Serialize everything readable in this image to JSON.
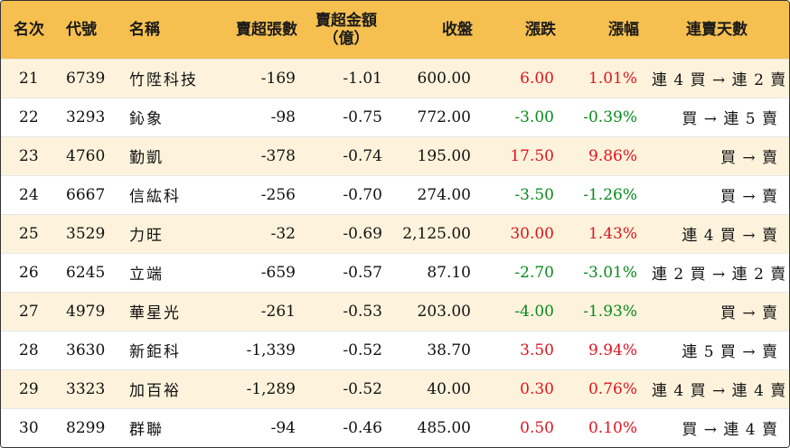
{
  "headers": {
    "rank": "名次",
    "code": "代號",
    "name": "名稱",
    "sell_over_shares": "賣超張數",
    "sell_over_amount_l1": "賣超金額",
    "sell_over_amount_l2": "（億）",
    "close": "收盤",
    "change": "漲跌",
    "change_pct": "漲幅",
    "consecutive": "連賣天數"
  },
  "colors": {
    "header_bg": "#f5c04f",
    "odd_row_bg": "#fdf3dc",
    "up": "#e0141e",
    "down": "#0a8a1e"
  },
  "rows": [
    {
      "rank": "21",
      "code": "6739",
      "name": "竹陞科技",
      "shares": "-169",
      "amount": "-1.01",
      "close": "600.00",
      "change": "6.00",
      "pct": "1.01%",
      "dir": "up",
      "days": "連 4 買 → 連 2 賣"
    },
    {
      "rank": "22",
      "code": "3293",
      "name": "鈊象",
      "shares": "-98",
      "amount": "-0.75",
      "close": "772.00",
      "change": "-3.00",
      "pct": "-0.39%",
      "dir": "down",
      "days": "買 → 連 5 賣"
    },
    {
      "rank": "23",
      "code": "4760",
      "name": "勤凱",
      "shares": "-378",
      "amount": "-0.74",
      "close": "195.00",
      "change": "17.50",
      "pct": "9.86%",
      "dir": "up",
      "days": "買 → 賣"
    },
    {
      "rank": "24",
      "code": "6667",
      "name": "信紘科",
      "shares": "-256",
      "amount": "-0.70",
      "close": "274.00",
      "change": "-3.50",
      "pct": "-1.26%",
      "dir": "down",
      "days": "買 → 賣"
    },
    {
      "rank": "25",
      "code": "3529",
      "name": "力旺",
      "shares": "-32",
      "amount": "-0.69",
      "close": "2,125.00",
      "change": "30.00",
      "pct": "1.43%",
      "dir": "up",
      "days": "連 4 買 → 賣"
    },
    {
      "rank": "26",
      "code": "6245",
      "name": "立端",
      "shares": "-659",
      "amount": "-0.57",
      "close": "87.10",
      "change": "-2.70",
      "pct": "-3.01%",
      "dir": "down",
      "days": "連 2 買 → 連 2 賣"
    },
    {
      "rank": "27",
      "code": "4979",
      "name": "華星光",
      "shares": "-261",
      "amount": "-0.53",
      "close": "203.00",
      "change": "-4.00",
      "pct": "-1.93%",
      "dir": "down",
      "days": "買 → 賣"
    },
    {
      "rank": "28",
      "code": "3630",
      "name": "新鉅科",
      "shares": "-1,339",
      "amount": "-0.52",
      "close": "38.70",
      "change": "3.50",
      "pct": "9.94%",
      "dir": "up",
      "days": "連 5 買 → 賣"
    },
    {
      "rank": "29",
      "code": "3323",
      "name": "加百裕",
      "shares": "-1,289",
      "amount": "-0.52",
      "close": "40.00",
      "change": "0.30",
      "pct": "0.76%",
      "dir": "up",
      "days": "連 4 買 → 連 4 賣"
    },
    {
      "rank": "30",
      "code": "8299",
      "name": "群聯",
      "shares": "-94",
      "amount": "-0.46",
      "close": "485.00",
      "change": "0.50",
      "pct": "0.10%",
      "dir": "up",
      "days": "買 → 連 4 賣"
    }
  ]
}
